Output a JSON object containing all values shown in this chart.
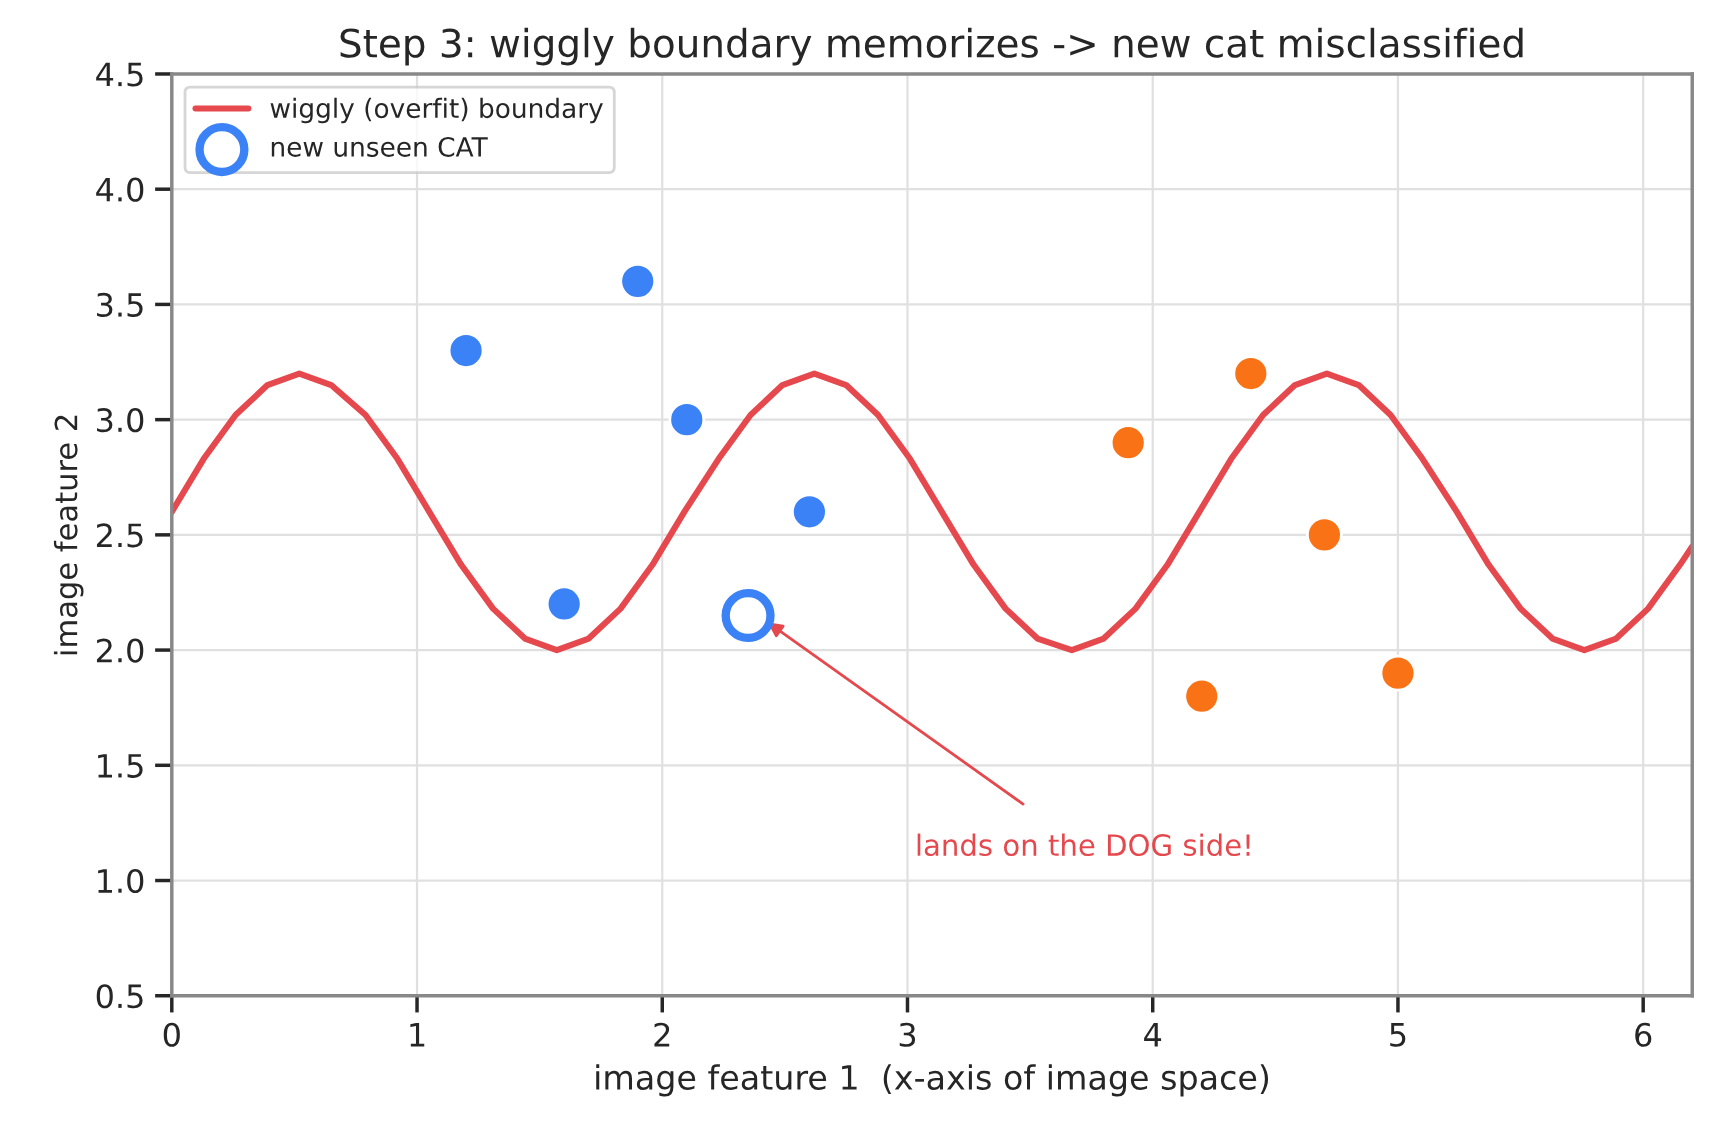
{
  "chart_data": {
    "type": "scatter",
    "title": "Step 3: wiggly boundary memorizes -> new cat misclassified",
    "xlabel": "image feature 1  (x-axis of image space)",
    "ylabel": "image feature 2",
    "xlim": [
      0,
      6.2
    ],
    "ylim": [
      0.5,
      4.5
    ],
    "xticks": [
      0,
      1,
      2,
      3,
      4,
      5,
      6
    ],
    "yticks": [
      0.5,
      {
        "value": 1,
        "label": "1.0"
      },
      1.5,
      {
        "value": 2,
        "label": "2.0"
      },
      2.5,
      {
        "value": 3,
        "label": "3.0"
      },
      3.5,
      {
        "value": 4,
        "label": "4.0"
      },
      4.5
    ],
    "grid": true,
    "legend": "top left",
    "series": [
      {
        "type": "line",
        "name": "wiggly (overfit) boundary",
        "color": "#e5484d",
        "marker": "none",
        "line_style": "solid",
        "x": [
          0,
          0.13,
          0.26,
          0.39,
          0.52,
          0.65,
          0.79,
          0.92,
          1.05,
          1.18,
          1.31,
          1.44,
          1.57,
          1.7,
          1.83,
          1.96,
          2.09,
          2.23,
          2.36,
          2.49,
          2.62,
          2.75,
          2.88,
          3.01,
          3.14,
          3.27,
          3.4,
          3.53,
          3.67,
          3.8,
          3.93,
          4.06,
          4.19,
          4.32,
          4.45,
          4.58,
          4.71,
          4.84,
          4.97,
          5.1,
          5.24,
          5.37,
          5.5,
          5.63,
          5.76,
          5.89,
          6.02,
          6.15,
          6.2
        ],
        "values": [
          2.6,
          2.83,
          3.02,
          3.15,
          3.2,
          3.15,
          3.02,
          2.83,
          2.6,
          2.37,
          2.18,
          2.05,
          2.0,
          2.05,
          2.18,
          2.37,
          2.6,
          2.83,
          3.02,
          3.15,
          3.2,
          3.15,
          3.02,
          2.83,
          2.6,
          2.37,
          2.18,
          2.05,
          2.0,
          2.05,
          2.18,
          2.37,
          2.6,
          2.83,
          3.02,
          3.15,
          3.2,
          3.15,
          3.02,
          2.83,
          2.6,
          2.37,
          2.18,
          2.05,
          2.0,
          2.05,
          2.18,
          2.37,
          2.45
        ]
      },
      {
        "color": "#3b82f6",
        "marker": "circle",
        "x": [
          1.2,
          1.6,
          1.9,
          2.1,
          2.6
        ],
        "values": [
          3.3,
          2.2,
          3.6,
          3.0,
          2.6
        ]
      },
      {
        "color": "#f97316",
        "marker": "circle",
        "x": [
          3.9,
          4.2,
          4.4,
          4.7,
          5.0
        ],
        "values": [
          2.9,
          1.8,
          3.2,
          2.5,
          1.9
        ]
      },
      {
        "name": "new unseen CAT",
        "color": "#3b82f6",
        "marker": "circle",
        "x": [
          2.35
        ],
        "values": [
          2.15
        ]
      }
    ],
    "annotations": [
      {
        "text": "lands on the DOG side!",
        "x": 2.43,
        "y": 2.12
      }
    ]
  }
}
